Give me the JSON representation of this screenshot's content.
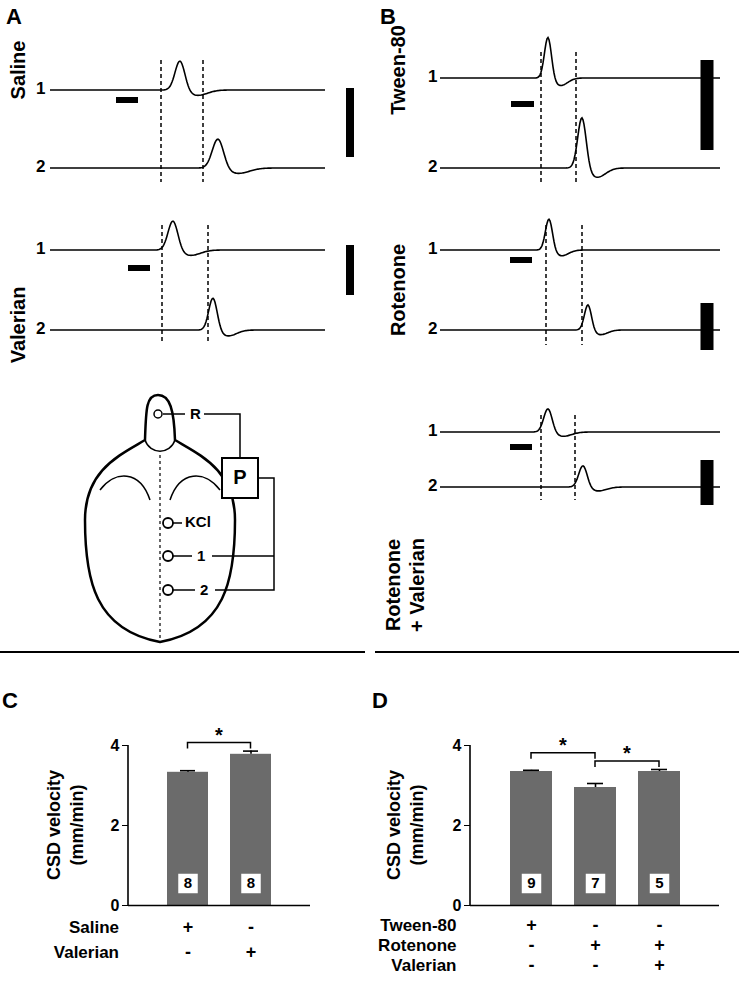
{
  "panels": [
    {
      "letter": "A",
      "groups": [
        {
          "label": [
            "Saline"
          ],
          "traces": [
            "1",
            "2"
          ]
        },
        {
          "label": [
            "Valerian"
          ],
          "traces": [
            "1",
            "2"
          ]
        }
      ],
      "schematic": [
        "R",
        "P",
        "KCl",
        "1",
        "2"
      ]
    },
    {
      "letter": "B",
      "groups": [
        {
          "label": [
            "Tween-80"
          ],
          "traces": [
            "1",
            "2"
          ]
        },
        {
          "label": [
            "Rotenone"
          ],
          "traces": [
            "1",
            "2"
          ]
        },
        {
          "label": [
            "Rotenone",
            "+ Valerian"
          ],
          "traces": [
            "1",
            "2"
          ]
        }
      ]
    }
  ],
  "chart_data": [
    {
      "title": "C",
      "type": "bar",
      "ylabel": [
        "CSD velocity",
        "(mm/min)"
      ],
      "categories": [
        null,
        null
      ],
      "values": [
        3.33,
        3.78
      ],
      "errors": [
        0.04,
        0.08
      ],
      "n": [
        8,
        8
      ],
      "color": "#6b6b6b",
      "ylim": [
        0,
        4
      ],
      "yticks": [
        0,
        2,
        4
      ],
      "tick_labels": "y",
      "conditions": [
        {
          "name": "Saline",
          "marks": [
            "+",
            "-"
          ]
        },
        {
          "name": "Valerian",
          "marks": [
            "-",
            "+"
          ]
        }
      ],
      "significance": [
        {
          "between": [
            0,
            1
          ],
          "label": "*"
        }
      ]
    },
    {
      "title": "D",
      "type": "bar",
      "ylabel": [
        "CSD velocity",
        "(mm/min)"
      ],
      "categories": [
        null,
        null,
        null
      ],
      "values": [
        3.35,
        2.95,
        3.35
      ],
      "errors": [
        0.03,
        0.1,
        0.05
      ],
      "n": [
        9,
        7,
        5
      ],
      "color": "#6b6b6b",
      "ylim": [
        0,
        4
      ],
      "yticks": [
        0,
        2,
        4
      ],
      "tick_labels": "y",
      "conditions": [
        {
          "name": "Tween-80",
          "marks": [
            "+",
            "-",
            "-"
          ]
        },
        {
          "name": "Rotenone",
          "marks": [
            "-",
            "+",
            "+"
          ]
        },
        {
          "name": "Valerian",
          "marks": [
            "-",
            "-",
            "+"
          ]
        }
      ],
      "significance": [
        {
          "between": [
            0,
            1
          ],
          "label": "*"
        },
        {
          "between": [
            1,
            2
          ],
          "label": "*"
        }
      ]
    }
  ]
}
